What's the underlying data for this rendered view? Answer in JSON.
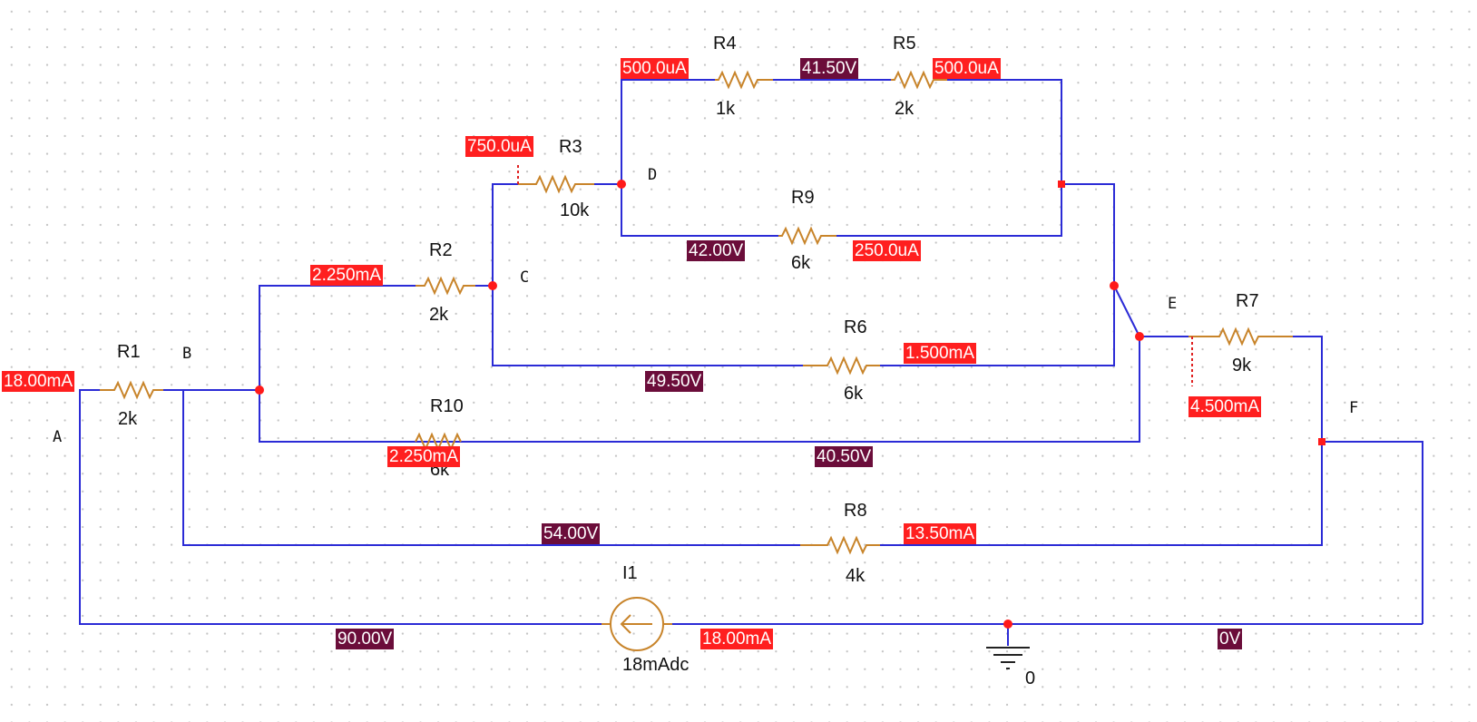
{
  "colors": {
    "wire": "#2b2bd6",
    "resistor": "#c8842a",
    "current_tag": "#ff1f1f",
    "voltage_tag": "#6b0d3a",
    "junction": "#ff1a1a"
  },
  "nodes": {
    "a": "A",
    "b": "B",
    "c": "C",
    "d": "D",
    "e": "E",
    "f": "F"
  },
  "resistors": {
    "r1": {
      "name": "R1",
      "value": "2k"
    },
    "r2": {
      "name": "R2",
      "value": "2k"
    },
    "r3": {
      "name": "R3",
      "value": "10k"
    },
    "r4": {
      "name": "R4",
      "value": "1k"
    },
    "r5": {
      "name": "R5",
      "value": "2k"
    },
    "r6": {
      "name": "R6",
      "value": "6k"
    },
    "r7": {
      "name": "R7",
      "value": "9k"
    },
    "r8": {
      "name": "R8",
      "value": "4k"
    },
    "r9": {
      "name": "R9",
      "value": "6k"
    },
    "r10": {
      "name": "R10",
      "value": "6k"
    }
  },
  "source": {
    "name": "I1",
    "value": "18mAdc",
    "icon": "current-source-arrow-left"
  },
  "ground": {
    "label": "0",
    "icon": "ground-icon"
  },
  "currents": {
    "r1": "18.00mA",
    "r2": "2.250mA",
    "r3": "750.0uA",
    "r4": "500.0uA",
    "r5": "500.0uA",
    "r6": "1.500mA",
    "r7": "4.500mA",
    "r8": "13.50mA",
    "r9": "250.0uA",
    "r10": "2.250mA",
    "i1": "18.00mA"
  },
  "voltages": {
    "a": "90.00V",
    "b": "54.00V",
    "c": "49.50V",
    "d": "42.00V",
    "r4r5": "41.50V",
    "e": "40.50V",
    "ground": "0V"
  }
}
